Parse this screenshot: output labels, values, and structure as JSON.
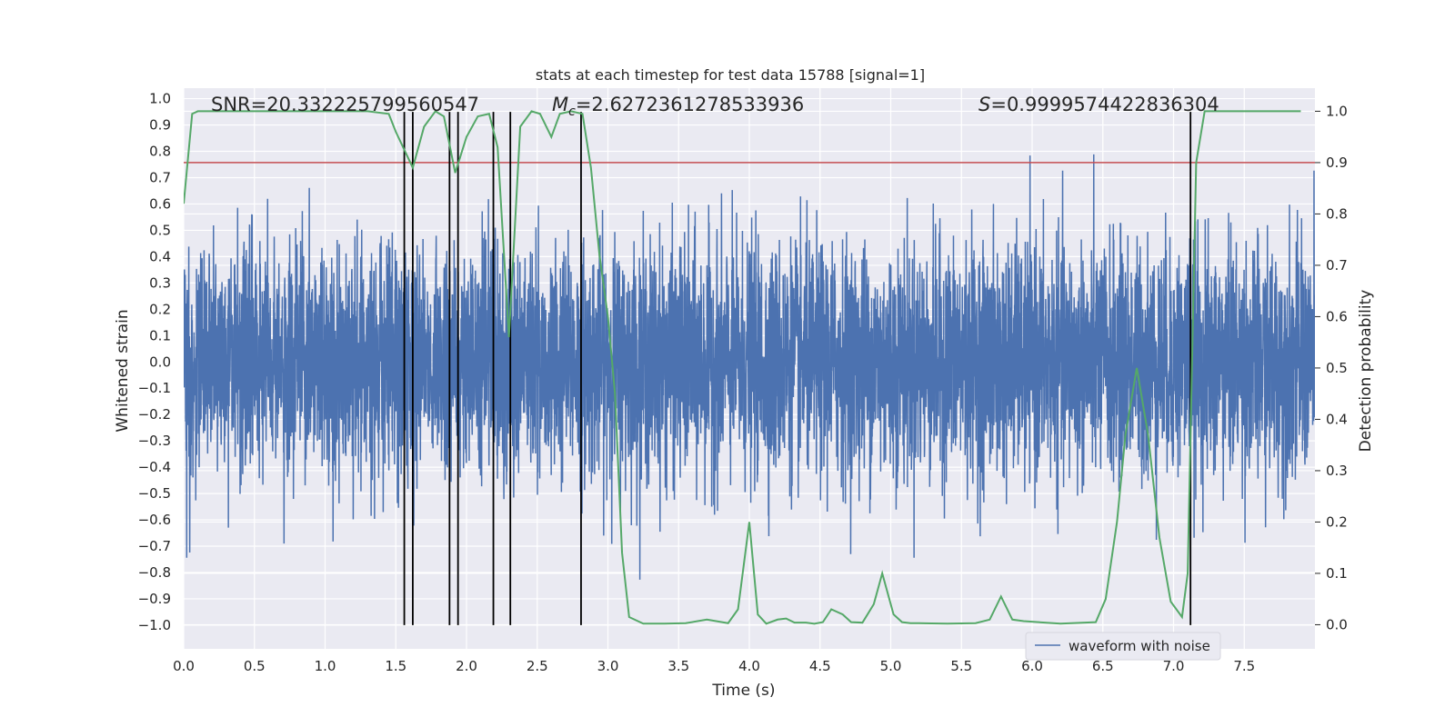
{
  "chart_data": {
    "type": "line",
    "title": "stats at each timestep for test data 15788 [signal=1]",
    "xlabel": "Time (s)",
    "ylabel_left": "Whitened strain",
    "ylabel_right": "Detection probability",
    "xlim": [
      0.0,
      8.0
    ],
    "ylim_left": [
      -1.09,
      1.04
    ],
    "ylim_right": [
      -0.047,
      1.045
    ],
    "x_ticks": [
      "0.0",
      "0.5",
      "1.0",
      "1.5",
      "2.0",
      "2.5",
      "3.0",
      "3.5",
      "4.0",
      "4.5",
      "5.0",
      "5.5",
      "6.0",
      "6.5",
      "7.0",
      "7.5"
    ],
    "y_left_ticks": [
      "1.0",
      "0.9",
      "0.8",
      "0.7",
      "0.6",
      "0.5",
      "0.4",
      "0.3",
      "0.2",
      "0.1",
      "0.0",
      "-0.1",
      "-0.2",
      "-0.3",
      "-0.4",
      "-0.5",
      "-0.6",
      "-0.7",
      "-0.8",
      "-0.9",
      "-1.0"
    ],
    "y_right_ticks": [
      "1.0",
      "0.9",
      "0.8",
      "0.7",
      "0.6",
      "0.5",
      "0.4",
      "0.3",
      "0.2",
      "0.1",
      "0.0"
    ],
    "grid": true,
    "legend": {
      "label": "waveform with noise",
      "placement": "lower-right"
    },
    "annotations": {
      "snr": "SNR=20.332225799560547",
      "mc": "M",
      "mc_sub": "c",
      "mc_value": "=2.6272361278533936",
      "s": "S",
      "s_value": "=0.9999574422836304"
    },
    "threshold": {
      "value": 0.9,
      "axis": "right",
      "color": "#c44e52"
    },
    "series": [
      {
        "name": "waveform with noise",
        "axis": "left",
        "color": "#4c72b0",
        "description": "dense noisy whitened strain trace sampled across 0–8 s, core amplitude about ±0.4 with spikes to about ±0.9",
        "core_amplitude": 0.4,
        "peak_amplitude": 0.94
      },
      {
        "name": "detection probability",
        "axis": "right",
        "color": "#55a868",
        "x": [
          0.0,
          0.06,
          0.1,
          0.3,
          0.5,
          0.7,
          0.9,
          1.1,
          1.3,
          1.45,
          1.5,
          1.62,
          1.7,
          1.78,
          1.84,
          1.92,
          2.0,
          2.08,
          2.16,
          2.22,
          2.3,
          2.38,
          2.46,
          2.52,
          2.6,
          2.66,
          2.74,
          2.82,
          2.88,
          2.94,
          3.0,
          3.05,
          3.1,
          3.15,
          3.25,
          3.4,
          3.55,
          3.7,
          3.85,
          3.92,
          4.0,
          4.06,
          4.12,
          4.2,
          4.26,
          4.32,
          4.4,
          4.46,
          4.52,
          4.58,
          4.66,
          4.72,
          4.8,
          4.88,
          4.94,
          5.02,
          5.08,
          5.14,
          5.2,
          5.4,
          5.6,
          5.7,
          5.78,
          5.86,
          5.94,
          6.2,
          6.45,
          6.52,
          6.6,
          6.66,
          6.74,
          6.82,
          6.9,
          6.98,
          7.06,
          7.1,
          7.16,
          7.22,
          7.3,
          7.5,
          7.7,
          7.9
        ],
        "values": [
          0.82,
          0.995,
          1.0,
          1.0,
          1.0,
          1.0,
          1.0,
          1.0,
          1.0,
          0.995,
          0.96,
          0.89,
          0.97,
          1.0,
          0.99,
          0.88,
          0.95,
          0.99,
          0.995,
          0.93,
          0.56,
          0.97,
          1.0,
          0.995,
          0.95,
          0.995,
          1.0,
          0.995,
          0.89,
          0.72,
          0.6,
          0.45,
          0.14,
          0.015,
          0.002,
          0.002,
          0.003,
          0.01,
          0.003,
          0.03,
          0.2,
          0.02,
          0.002,
          0.01,
          0.012,
          0.004,
          0.004,
          0.002,
          0.005,
          0.03,
          0.02,
          0.005,
          0.004,
          0.04,
          0.1,
          0.02,
          0.005,
          0.003,
          0.003,
          0.002,
          0.003,
          0.01,
          0.055,
          0.01,
          0.007,
          0.002,
          0.005,
          0.05,
          0.2,
          0.37,
          0.5,
          0.37,
          0.17,
          0.045,
          0.015,
          0.1,
          0.9,
          1.0,
          1.0,
          1.0,
          1.0,
          1.0
        ]
      }
    ],
    "vertical_markers": {
      "axis": "left",
      "y_range": [
        -1.0,
        0.95
      ],
      "x": [
        1.56,
        1.62,
        1.88,
        1.94,
        2.19,
        2.31,
        2.81,
        7.12
      ]
    }
  }
}
